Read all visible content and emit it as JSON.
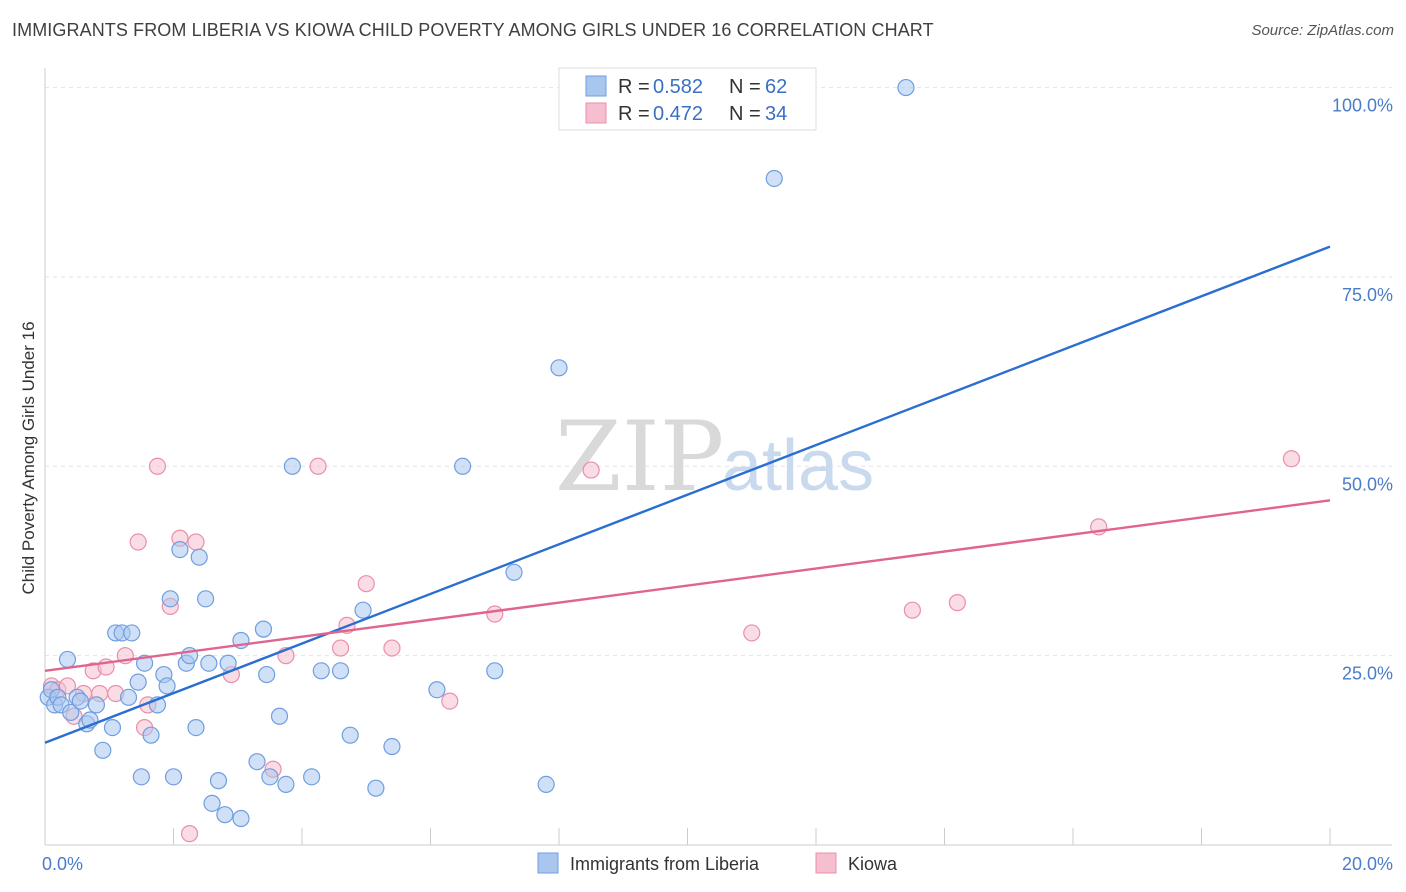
{
  "title": "IMMIGRANTS FROM LIBERIA VS KIOWA CHILD POVERTY AMONG GIRLS UNDER 16 CORRELATION CHART",
  "source": "Source: ZipAtlas.com",
  "watermark": {
    "zip": "ZIP",
    "atlas": "atlas"
  },
  "colors": {
    "blue_fill": "#a9c6ef",
    "blue_stroke": "#6f9ee0",
    "blue_line": "#2a6fd0",
    "pink_fill": "#f6bfcf",
    "pink_stroke": "#ea8fab",
    "pink_line": "#e0648f",
    "grid": "#e3e3e3",
    "axis": "#cccccc"
  },
  "legend": {
    "rows": [
      {
        "r_label": "R =",
        "r_value": "0.582",
        "n_label": "N =",
        "n_value": "62",
        "series": "blue"
      },
      {
        "r_label": "R =",
        "r_value": "0.472",
        "n_label": "N =",
        "n_value": "34",
        "series": "pink"
      }
    ]
  },
  "chart_data": {
    "type": "scatter",
    "title": "IMMIGRANTS FROM LIBERIA VS KIOWA CHILD POVERTY AMONG GIRLS UNDER 16 CORRELATION CHART",
    "xlabel": "",
    "ylabel": "Child Poverty Among Girls Under 16",
    "xlim": [
      0,
      20
    ],
    "ylim": [
      0,
      101
    ],
    "x_tick_labels": [
      {
        "value": 0,
        "label": "0.0%"
      },
      {
        "value": 20,
        "label": "20.0%"
      }
    ],
    "y_tick_labels": [
      {
        "value": 25,
        "label": "25.0%"
      },
      {
        "value": 50,
        "label": "50.0%"
      },
      {
        "value": 75,
        "label": "75.0%"
      },
      {
        "value": 100,
        "label": "100.0%"
      }
    ],
    "legend_position": "top-center",
    "series": [
      {
        "name": "Immigrants from Liberia",
        "color": "blue",
        "trend": {
          "x": [
            0,
            20
          ],
          "y": [
            13.5,
            79
          ]
        },
        "points": [
          [
            0.05,
            19.5
          ],
          [
            0.1,
            20.5
          ],
          [
            0.15,
            18.5
          ],
          [
            0.2,
            19.5
          ],
          [
            0.25,
            18.5
          ],
          [
            0.35,
            24.5
          ],
          [
            0.4,
            17.5
          ],
          [
            0.5,
            19.5
          ],
          [
            0.55,
            19
          ],
          [
            0.65,
            16
          ],
          [
            0.7,
            16.5
          ],
          [
            0.8,
            18.5
          ],
          [
            0.9,
            12.5
          ],
          [
            1.05,
            15.5
          ],
          [
            1.1,
            28
          ],
          [
            1.2,
            28
          ],
          [
            1.35,
            28
          ],
          [
            1.3,
            19.5
          ],
          [
            1.45,
            21.5
          ],
          [
            1.5,
            9
          ],
          [
            1.55,
            24
          ],
          [
            1.65,
            14.5
          ],
          [
            1.75,
            18.5
          ],
          [
            1.85,
            22.5
          ],
          [
            1.9,
            21
          ],
          [
            1.95,
            32.5
          ],
          [
            2.0,
            9
          ],
          [
            2.1,
            39
          ],
          [
            2.2,
            24
          ],
          [
            2.25,
            25
          ],
          [
            2.35,
            15.5
          ],
          [
            2.4,
            38
          ],
          [
            2.5,
            32.5
          ],
          [
            2.55,
            24
          ],
          [
            2.6,
            5.5
          ],
          [
            2.7,
            8.5
          ],
          [
            2.8,
            4
          ],
          [
            2.85,
            24
          ],
          [
            3.05,
            3.5
          ],
          [
            3.05,
            27
          ],
          [
            3.3,
            11
          ],
          [
            3.4,
            28.5
          ],
          [
            3.45,
            22.5
          ],
          [
            3.5,
            9
          ],
          [
            3.65,
            17
          ],
          [
            3.75,
            8
          ],
          [
            3.85,
            50
          ],
          [
            4.15,
            9
          ],
          [
            4.3,
            23
          ],
          [
            4.6,
            23
          ],
          [
            4.75,
            14.5
          ],
          [
            4.95,
            31
          ],
          [
            5.15,
            7.5
          ],
          [
            5.4,
            13
          ],
          [
            6.1,
            20.5
          ],
          [
            6.5,
            50
          ],
          [
            7.0,
            23
          ],
          [
            7.3,
            36
          ],
          [
            7.8,
            8
          ],
          [
            8.0,
            63
          ],
          [
            11.35,
            88
          ],
          [
            13.4,
            100
          ]
        ]
      },
      {
        "name": "Kiowa",
        "color": "pink",
        "trend": {
          "x": [
            0,
            20
          ],
          "y": [
            23,
            45.5
          ]
        },
        "points": [
          [
            0.1,
            21
          ],
          [
            0.2,
            20.5
          ],
          [
            0.35,
            21
          ],
          [
            0.45,
            17
          ],
          [
            0.6,
            20
          ],
          [
            0.75,
            23
          ],
          [
            0.85,
            20
          ],
          [
            0.95,
            23.5
          ],
          [
            1.1,
            20
          ],
          [
            1.25,
            25
          ],
          [
            1.45,
            40
          ],
          [
            1.55,
            15.5
          ],
          [
            1.6,
            18.5
          ],
          [
            1.75,
            50
          ],
          [
            1.95,
            31.5
          ],
          [
            2.1,
            40.5
          ],
          [
            2.25,
            1.5
          ],
          [
            2.35,
            40
          ],
          [
            2.9,
            22.5
          ],
          [
            3.55,
            10
          ],
          [
            3.75,
            25
          ],
          [
            4.25,
            50
          ],
          [
            4.6,
            26
          ],
          [
            4.7,
            29
          ],
          [
            5.0,
            34.5
          ],
          [
            5.4,
            26
          ],
          [
            6.3,
            19
          ],
          [
            7.0,
            30.5
          ],
          [
            8.5,
            49.5
          ],
          [
            11.0,
            28
          ],
          [
            13.5,
            31
          ],
          [
            14.2,
            32
          ],
          [
            16.4,
            42
          ],
          [
            19.4,
            51
          ]
        ]
      }
    ]
  }
}
